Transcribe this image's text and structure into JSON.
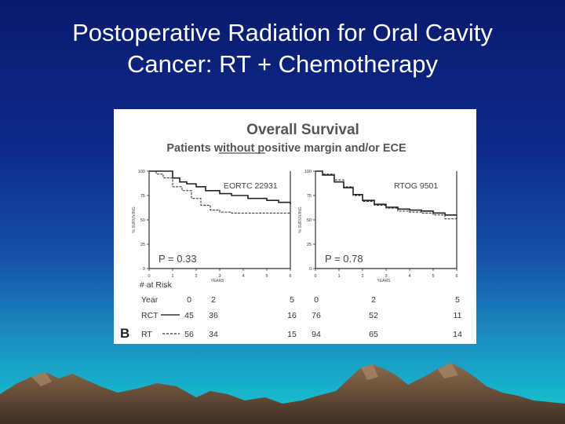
{
  "slide": {
    "title_lines": [
      "Postoperative Radiation for Oral Cavity",
      "Cancer: RT + Chemotherapy"
    ]
  },
  "figure": {
    "heading": "Overall Survival",
    "subheading": "Patients without positive margin and/or ECE",
    "panel_label": "B",
    "risk_header": "# at Risk",
    "risk_rows": [
      {
        "label": "Year",
        "left": [
          "0",
          "2",
          "5"
        ],
        "right": [
          "0",
          "2",
          "5"
        ]
      },
      {
        "label": "RCT",
        "left": [
          "45",
          "36",
          "16"
        ],
        "right": [
          "76",
          "52",
          "11"
        ]
      },
      {
        "label": "RT",
        "left": [
          "56",
          "34",
          "15"
        ],
        "right": [
          "94",
          "65",
          "14"
        ]
      }
    ]
  },
  "chart_data": [
    {
      "type": "line",
      "title": "EORTC 22931",
      "xlabel": "YEARS",
      "ylabel": "% SURVIVING",
      "xlim": [
        0,
        6
      ],
      "ylim": [
        0,
        100
      ],
      "xticks": [
        "0",
        "1",
        "2",
        "3",
        "4",
        "5",
        "6"
      ],
      "yticks": [
        "0",
        "25",
        "50",
        "75",
        "100"
      ],
      "annotation": "P = 0.33",
      "series": [
        {
          "name": "RCT",
          "style": "solid",
          "x": [
            0,
            0.8,
            1.0,
            1.3,
            1.6,
            2.0,
            2.4,
            3.0,
            3.5,
            4.2,
            5.0,
            5.5,
            6.0
          ],
          "y": [
            100,
            100,
            93,
            89,
            87,
            84,
            80,
            77,
            75,
            72,
            70,
            68,
            66
          ]
        },
        {
          "name": "RT",
          "style": "dashed",
          "x": [
            0,
            0.3,
            0.6,
            1.0,
            1.4,
            1.8,
            2.2,
            2.6,
            3.0,
            3.5,
            4.5,
            5.5,
            6.0
          ],
          "y": [
            100,
            97,
            93,
            84,
            80,
            72,
            65,
            60,
            58,
            57,
            57,
            57,
            57
          ]
        }
      ]
    },
    {
      "type": "line",
      "title": "RTOG 9501",
      "xlabel": "YEARS",
      "ylabel": "% SURVIVING",
      "xlim": [
        0,
        6
      ],
      "ylim": [
        0,
        100
      ],
      "xticks": [
        "0",
        "1",
        "2",
        "3",
        "4",
        "5",
        "6"
      ],
      "yticks": [
        "0",
        "25",
        "50",
        "75",
        "100"
      ],
      "annotation": "P = 0.78",
      "series": [
        {
          "name": "RCT",
          "style": "solid",
          "x": [
            0,
            0.3,
            0.8,
            1.2,
            1.6,
            2.0,
            2.5,
            3.0,
            3.5,
            4.0,
            4.5,
            5.0,
            5.5,
            6.0
          ],
          "y": [
            100,
            96,
            89,
            83,
            76,
            70,
            66,
            63,
            61,
            60,
            59,
            57,
            55,
            55
          ]
        },
        {
          "name": "RT",
          "style": "dashed",
          "x": [
            0,
            0.3,
            0.8,
            1.2,
            1.6,
            2.0,
            2.5,
            3.0,
            3.5,
            4.0,
            4.5,
            5.0,
            5.5,
            6.0
          ],
          "y": [
            100,
            97,
            91,
            84,
            75,
            69,
            65,
            62,
            59,
            58,
            57,
            55,
            51,
            50
          ]
        }
      ]
    }
  ]
}
